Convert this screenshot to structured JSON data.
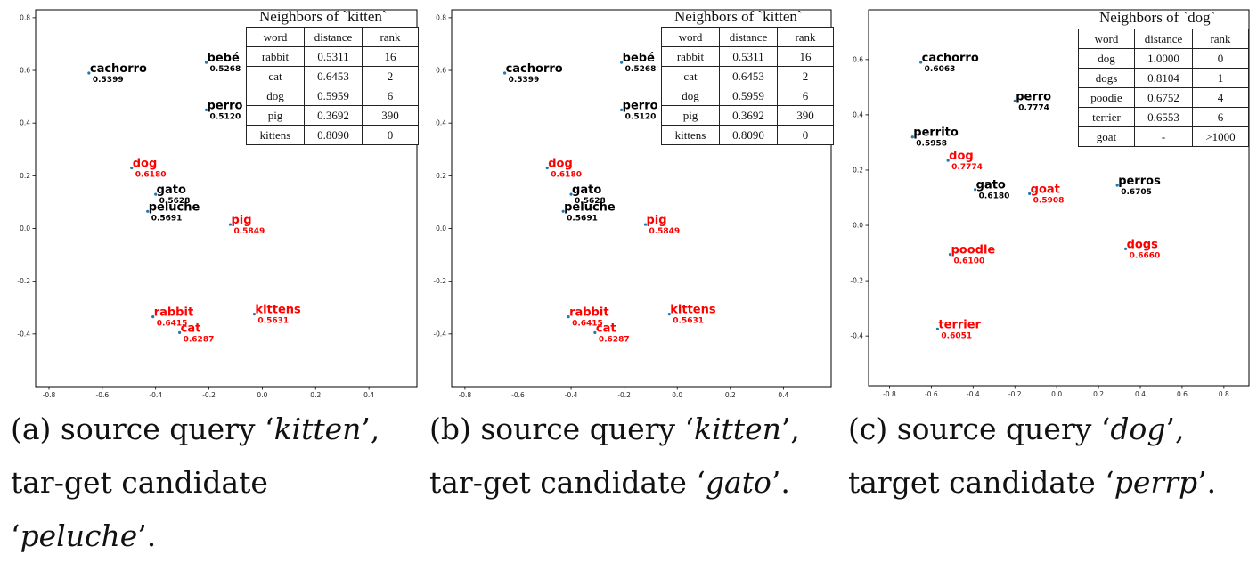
{
  "chart_data": [
    {
      "type": "scatter",
      "xlim": [
        -0.85,
        0.58
      ],
      "ylim": [
        -0.6,
        0.83
      ],
      "xticks": [
        "-0.8",
        "-0.6",
        "-0.4",
        "-0.2",
        "0.0",
        "0.2",
        "0.4"
      ],
      "yticks": [
        "0.8",
        "0.6",
        "0.4",
        "0.2",
        "0.0",
        "-0.2",
        "-0.4"
      ],
      "points": [
        {
          "label": "cachorro",
          "score": "0.5399",
          "x": -0.65,
          "y": 0.59,
          "color": "#000000"
        },
        {
          "label": "bebé",
          "score": "0.5268",
          "x": -0.21,
          "y": 0.63,
          "color": "#000000"
        },
        {
          "label": "perro",
          "score": "0.5120",
          "x": -0.21,
          "y": 0.45,
          "color": "#000000"
        },
        {
          "label": "dog",
          "score": "0.6180",
          "x": -0.49,
          "y": 0.23,
          "color": "#ff0000"
        },
        {
          "label": "gato",
          "score": "0.5628",
          "x": -0.4,
          "y": 0.13,
          "color": "#000000"
        },
        {
          "label": "peluche",
          "score": "0.5691",
          "x": -0.43,
          "y": 0.065,
          "color": "#000000"
        },
        {
          "label": "pig",
          "score": "0.5849",
          "x": -0.12,
          "y": 0.015,
          "color": "#ff0000"
        },
        {
          "label": "rabbit",
          "score": "0.6415",
          "x": -0.41,
          "y": -0.335,
          "color": "#ff0000"
        },
        {
          "label": "kittens",
          "score": "0.5631",
          "x": -0.03,
          "y": -0.325,
          "color": "#ff0000"
        },
        {
          "label": "cat",
          "score": "0.6287",
          "x": -0.31,
          "y": -0.395,
          "color": "#ff0000"
        }
      ],
      "table": {
        "title": "Neighbors of `kitten`",
        "columns": [
          "word",
          "distance",
          "rank"
        ],
        "rows": [
          [
            "rabbit",
            "0.5311",
            "16"
          ],
          [
            "cat",
            "0.6453",
            "2"
          ],
          [
            "dog",
            "0.5959",
            "6"
          ],
          [
            "pig",
            "0.3692",
            "390"
          ],
          [
            "kittens",
            "0.8090",
            "0"
          ]
        ]
      }
    },
    {
      "type": "scatter",
      "xlim": [
        -0.85,
        0.58
      ],
      "ylim": [
        -0.6,
        0.83
      ],
      "xticks": [
        "-0.8",
        "-0.6",
        "-0.4",
        "-0.2",
        "0.0",
        "0.2",
        "0.4"
      ],
      "yticks": [
        "0.8",
        "0.6",
        "0.4",
        "0.2",
        "0.0",
        "-0.2",
        "-0.4"
      ],
      "points": [
        {
          "label": "cachorro",
          "score": "0.5399",
          "x": -0.65,
          "y": 0.59,
          "color": "#000000"
        },
        {
          "label": "bebé",
          "score": "0.5268",
          "x": -0.21,
          "y": 0.63,
          "color": "#000000"
        },
        {
          "label": "perro",
          "score": "0.5120",
          "x": -0.21,
          "y": 0.45,
          "color": "#000000"
        },
        {
          "label": "dog",
          "score": "0.6180",
          "x": -0.49,
          "y": 0.23,
          "color": "#ff0000"
        },
        {
          "label": "gato",
          "score": "0.5628",
          "x": -0.4,
          "y": 0.13,
          "color": "#000000"
        },
        {
          "label": "peluche",
          "score": "0.5691",
          "x": -0.43,
          "y": 0.065,
          "color": "#000000"
        },
        {
          "label": "pig",
          "score": "0.5849",
          "x": -0.12,
          "y": 0.015,
          "color": "#ff0000"
        },
        {
          "label": "rabbit",
          "score": "0.6415",
          "x": -0.41,
          "y": -0.335,
          "color": "#ff0000"
        },
        {
          "label": "kittens",
          "score": "0.5631",
          "x": -0.03,
          "y": -0.325,
          "color": "#ff0000"
        },
        {
          "label": "cat",
          "score": "0.6287",
          "x": -0.31,
          "y": -0.395,
          "color": "#ff0000"
        }
      ],
      "table": {
        "title": "Neighbors of `kitten`",
        "columns": [
          "word",
          "distance",
          "rank"
        ],
        "rows": [
          [
            "rabbit",
            "0.5311",
            "16"
          ],
          [
            "cat",
            "0.6453",
            "2"
          ],
          [
            "dog",
            "0.5959",
            "6"
          ],
          [
            "pig",
            "0.3692",
            "390"
          ],
          [
            "kittens",
            "0.8090",
            "0"
          ]
        ]
      }
    },
    {
      "type": "scatter",
      "xlim": [
        -0.9,
        0.92
      ],
      "ylim": [
        -0.58,
        0.78
      ],
      "xticks": [
        "-0.8",
        "-0.6",
        "-0.4",
        "-0.2",
        "0.0",
        "0.2",
        "0.4",
        "0.6",
        "0.8"
      ],
      "yticks": [
        "0.6",
        "0.4",
        "0.2",
        "0.0",
        "-0.2",
        "-0.4"
      ],
      "points": [
        {
          "label": "cachorro",
          "score": "0.6063",
          "x": -0.65,
          "y": 0.59,
          "color": "#000000"
        },
        {
          "label": "perro",
          "score": "0.7774",
          "x": -0.2,
          "y": 0.45,
          "color": "#000000"
        },
        {
          "label": "perrito",
          "score": "0.5958",
          "x": -0.69,
          "y": 0.32,
          "color": "#000000"
        },
        {
          "label": "dog",
          "score": "0.7774",
          "x": -0.52,
          "y": 0.235,
          "color": "#ff0000"
        },
        {
          "label": "gato",
          "score": "0.6180",
          "x": -0.39,
          "y": 0.13,
          "color": "#000000"
        },
        {
          "label": "goat",
          "score": "0.5908",
          "x": -0.13,
          "y": 0.115,
          "color": "#ff0000"
        },
        {
          "label": "perros",
          "score": "0.6705",
          "x": 0.29,
          "y": 0.145,
          "color": "#000000"
        },
        {
          "label": "poodle",
          "score": "0.6100",
          "x": -0.51,
          "y": -0.105,
          "color": "#ff0000"
        },
        {
          "label": "dogs",
          "score": "0.6660",
          "x": 0.33,
          "y": -0.085,
          "color": "#ff0000"
        },
        {
          "label": "terrier",
          "score": "0.6051",
          "x": -0.57,
          "y": -0.375,
          "color": "#ff0000"
        }
      ],
      "table": {
        "title": "Neighbors of `dog`",
        "columns": [
          "word",
          "distance",
          "rank"
        ],
        "rows": [
          [
            "dog",
            "1.0000",
            "0"
          ],
          [
            "dogs",
            "0.8104",
            "1"
          ],
          [
            "poodie",
            "0.6752",
            "4"
          ],
          [
            "terrier",
            "0.6553",
            "6"
          ],
          [
            "goat",
            "-",
            ">1000"
          ]
        ]
      }
    }
  ],
  "captions": [
    {
      "prefix": "(a) source query ‘",
      "query": "kitten",
      "middle": "’, tar-get candidate ‘",
      "target": "peluche",
      "suffix": "’."
    },
    {
      "prefix": "(b) source query ‘",
      "query": "kitten",
      "middle": "’, tar-get candidate ‘",
      "target": "gato",
      "suffix": "’."
    },
    {
      "prefix": "(c) source query ‘",
      "query": "dog",
      "middle": "’, target candidate ‘",
      "target": "perrp",
      "suffix": "’."
    }
  ]
}
